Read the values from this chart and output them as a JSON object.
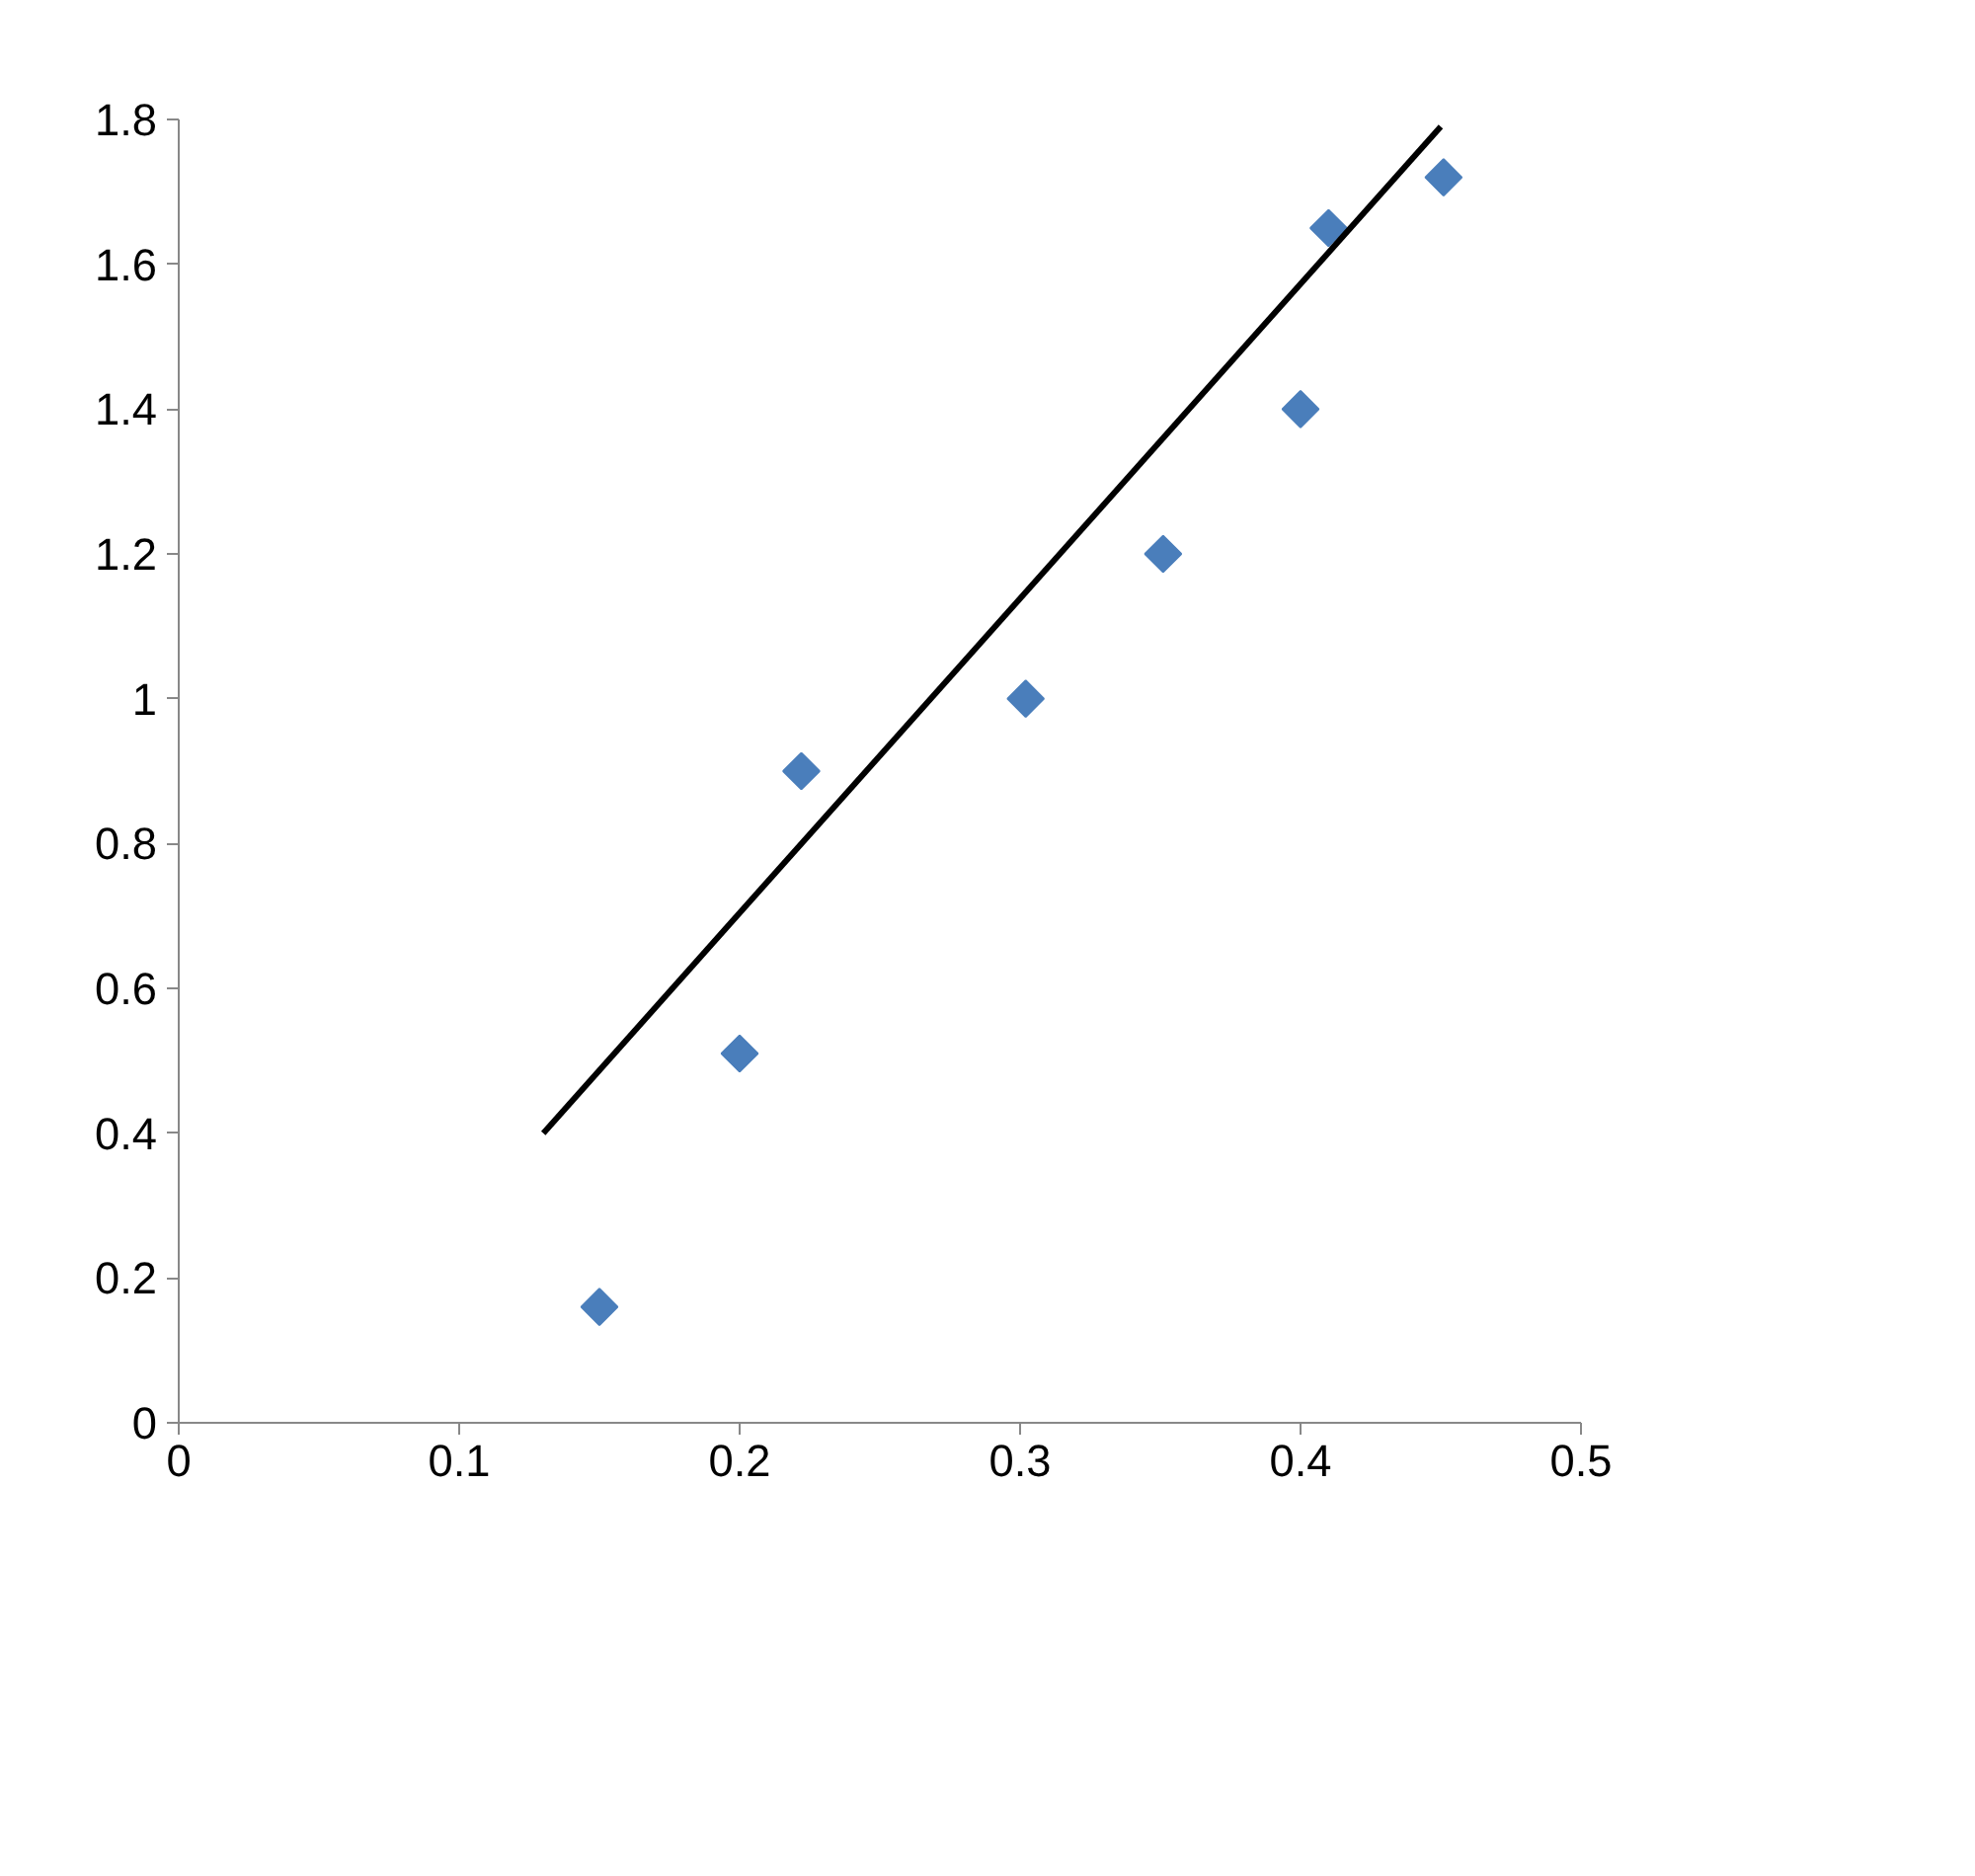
{
  "chart_data": {
    "type": "scatter",
    "marker": "diamond",
    "grid": false,
    "xlim": [
      0,
      0.5
    ],
    "xticks": [
      0,
      0.1,
      0.2,
      0.3,
      0.4,
      0.5
    ],
    "ylim": [
      0,
      1.8
    ],
    "yticks": [
      0,
      0.2,
      0.4,
      0.6,
      0.8,
      1,
      1.2,
      1.4,
      1.6,
      1.8
    ],
    "series": [
      {
        "color": "#4a7ebb",
        "x": [
          0.15,
          0.2,
          0.222,
          0.302,
          0.351,
          0.4,
          0.41,
          0.451
        ],
        "values": [
          0.16,
          0.51,
          0.9,
          1.0,
          1.2,
          1.4,
          1.65,
          1.72
        ]
      },
      {
        "type": "line",
        "color": "#000000",
        "line_style": "solid",
        "marker": "none",
        "x": [
          0.13,
          0.45
        ],
        "values": [
          0.4,
          1.79
        ]
      }
    ]
  }
}
